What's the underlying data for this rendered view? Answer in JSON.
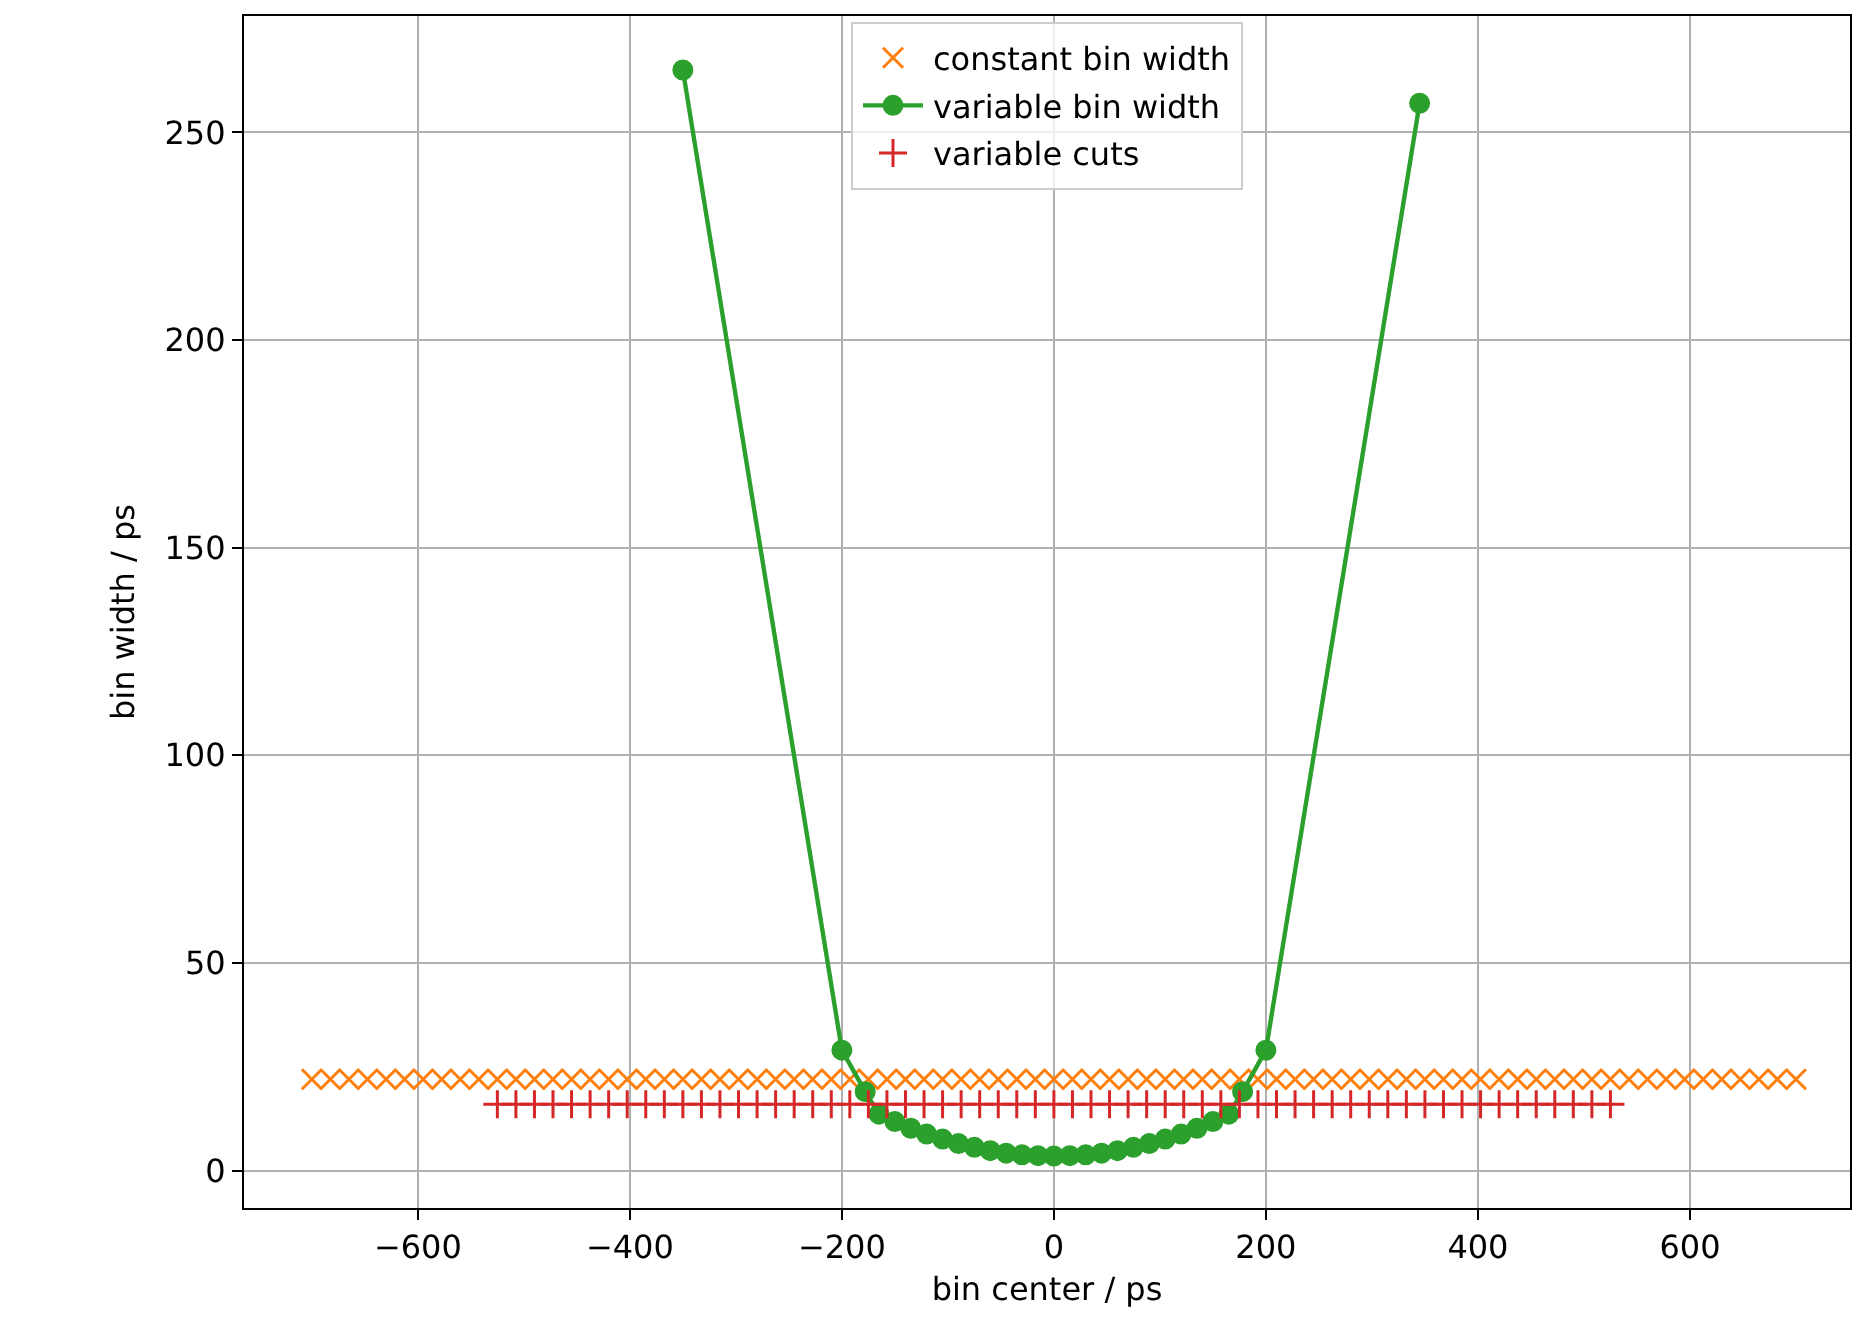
{
  "chart_data": {
    "type": "scatter",
    "xlabel": "bin center / ps",
    "ylabel": "bin width / ps",
    "xlim": [
      -764,
      751
    ],
    "ylim": [
      -9,
      278
    ],
    "xticks": [
      {
        "value": -600,
        "label": "−600"
      },
      {
        "value": -400,
        "label": "−400"
      },
      {
        "value": -200,
        "label": "−200"
      },
      0,
      200,
      400,
      600
    ],
    "yticks": [
      0,
      50,
      100,
      150,
      200,
      250
    ],
    "grid": true,
    "legend": "top",
    "series": [
      {
        "name": "constant bin width",
        "color": "#ff7f0e",
        "marker": "x",
        "x": [
          -700,
          -682.5,
          -665,
          -647.5,
          -630,
          -612.5,
          -595,
          -577.5,
          -560,
          -542.5,
          -525,
          -507.5,
          -490,
          -472.5,
          -455,
          -437.5,
          -420,
          -402.5,
          -385,
          -367.5,
          -350,
          -332.5,
          -315,
          -297.5,
          -280,
          -262.5,
          -245,
          -227.5,
          -210,
          -192.5,
          -175,
          -157.5,
          -140,
          -122.5,
          -105,
          -87.5,
          -70,
          -52.5,
          -35,
          -17.5,
          0,
          17.5,
          35,
          52.5,
          70,
          87.5,
          105,
          122.5,
          140,
          157.5,
          175,
          192.5,
          210,
          227.5,
          245,
          262.5,
          280,
          297.5,
          315,
          332.5,
          350,
          367.5,
          385,
          402.5,
          420,
          437.5,
          455,
          472.5,
          490,
          507.5,
          525,
          542.5,
          560,
          577.5,
          595,
          612.5,
          630,
          647.5,
          665,
          682.5,
          700
        ],
        "values": [
          22,
          22,
          22,
          22,
          22,
          22,
          22,
          22,
          22,
          22,
          22,
          22,
          22,
          22,
          22,
          22,
          22,
          22,
          22,
          22,
          22,
          22,
          22,
          22,
          22,
          22,
          22,
          22,
          22,
          22,
          22,
          22,
          22,
          22,
          22,
          22,
          22,
          22,
          22,
          22,
          22,
          22,
          22,
          22,
          22,
          22,
          22,
          22,
          22,
          22,
          22,
          22,
          22,
          22,
          22,
          22,
          22,
          22,
          22,
          22,
          22,
          22,
          22,
          22,
          22,
          22,
          22,
          22,
          22,
          22,
          22,
          22,
          22,
          22,
          22,
          22,
          22,
          22,
          22,
          22,
          22
        ]
      },
      {
        "name": "variable bin width",
        "color": "#2ca02c",
        "type": "line",
        "marker": "circle",
        "x": [
          -350,
          -200,
          -178,
          -165,
          -150,
          -135,
          -120,
          -105,
          -90,
          -75,
          -60,
          -45,
          -30,
          -15,
          0,
          15,
          30,
          45,
          60,
          75,
          90,
          105,
          120,
          135,
          150,
          165,
          178,
          200,
          345
        ],
        "values": [
          265,
          29,
          19,
          13.6,
          11.8,
          10.2,
          8.8,
          7.6,
          6.5,
          5.6,
          4.8,
          4.2,
          3.8,
          3.6,
          3.5,
          3.6,
          3.8,
          4.2,
          4.8,
          5.6,
          6.5,
          7.6,
          8.8,
          10.2,
          11.8,
          13.6,
          19,
          29,
          257
        ]
      },
      {
        "name": "variable cuts",
        "color": "#d62728",
        "marker": "cross",
        "x": [
          -525,
          -507.5,
          -490,
          -472.5,
          -455,
          -437.5,
          -420,
          -402.5,
          -385,
          -367.5,
          -350,
          -332.5,
          -315,
          -297.5,
          -280,
          -262.5,
          -245,
          -227.5,
          -210,
          -192.5,
          -175,
          -157.5,
          -140,
          -122.5,
          -105,
          -87.5,
          -70,
          -52.5,
          -35,
          -17.5,
          0,
          17.5,
          35,
          52.5,
          70,
          87.5,
          105,
          122.5,
          140,
          157.5,
          175,
          192.5,
          210,
          227.5,
          245,
          262.5,
          280,
          297.5,
          315,
          332.5,
          350,
          367.5,
          385,
          402.5,
          420,
          437.5,
          455,
          472.5,
          490,
          507.5,
          525
        ],
        "values": [
          16,
          16,
          16,
          16,
          16,
          16,
          16,
          16,
          16,
          16,
          16,
          16,
          16,
          16,
          16,
          16,
          16,
          16,
          16,
          16,
          16,
          16,
          16,
          16,
          16,
          16,
          16,
          16,
          16,
          16,
          16,
          16,
          16,
          16,
          16,
          16,
          16,
          16,
          16,
          16,
          16,
          16,
          16,
          16,
          16,
          16,
          16,
          16,
          16,
          16,
          16,
          16,
          16,
          16,
          16,
          16,
          16,
          16,
          16,
          16,
          16
        ]
      }
    ]
  }
}
